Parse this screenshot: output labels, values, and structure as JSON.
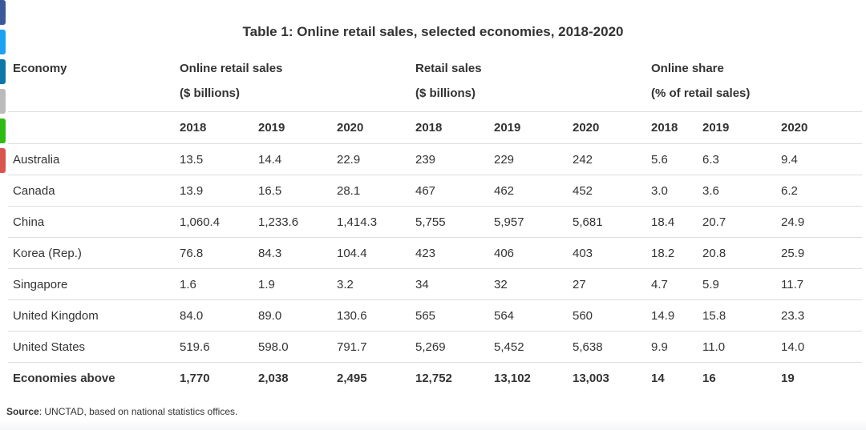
{
  "share_buttons": [
    {
      "icon": "facebook-icon",
      "color": "#3b5998"
    },
    {
      "icon": "twitter-icon",
      "color": "#1da1f2"
    },
    {
      "icon": "linkedin-icon",
      "color": "#0e76a8"
    },
    {
      "icon": "email-icon",
      "color": "#bbbbbb"
    },
    {
      "icon": "wechat-icon",
      "color": "#2dbb14"
    },
    {
      "icon": "share-icon",
      "color": "#d9534f"
    }
  ],
  "title": "Table 1: Online retail sales, selected economies, 2018-2020",
  "headers": {
    "economy": "Economy",
    "groups": [
      {
        "name": "Online retail sales",
        "unit": "($ billions)"
      },
      {
        "name": "Retail sales",
        "unit": "($ billions)"
      },
      {
        "name": "Online share",
        "unit": "(% of retail sales)"
      }
    ],
    "years": [
      "2018",
      "2019",
      "2020",
      "2018",
      "2019",
      "2020",
      "2018",
      "2019",
      "2020"
    ]
  },
  "rows": [
    {
      "economy": "Australia",
      "values": [
        "13.5",
        "14.4",
        "22.9",
        "239",
        "229",
        "242",
        "5.6",
        "6.3",
        "9.4"
      ]
    },
    {
      "economy": "Canada",
      "values": [
        "13.9",
        "16.5",
        "28.1",
        "467",
        "462",
        "452",
        "3.0",
        "3.6",
        "6.2"
      ]
    },
    {
      "economy": "China",
      "values": [
        "1,060.4",
        "1,233.6",
        "1,414.3",
        "5,755",
        "5,957",
        "5,681",
        "18.4",
        "20.7",
        "24.9"
      ]
    },
    {
      "economy": "Korea (Rep.)",
      "values": [
        "76.8",
        "84.3",
        "104.4",
        "423",
        "406",
        "403",
        "18.2",
        "20.8",
        "25.9"
      ]
    },
    {
      "economy": "Singapore",
      "values": [
        "1.6",
        "1.9",
        "3.2",
        "34",
        "32",
        "27",
        "4.7",
        "5.9",
        "11.7"
      ]
    },
    {
      "economy": "United Kingdom",
      "values": [
        "84.0",
        "89.0",
        "130.6",
        "565",
        "564",
        "560",
        "14.9",
        "15.8",
        "23.3"
      ]
    },
    {
      "economy": "United States",
      "values": [
        "519.6",
        "598.0",
        "791.7",
        "5,269",
        "5,452",
        "5,638",
        "9.9",
        "11.0",
        "14.0"
      ]
    }
  ],
  "total": {
    "economy": "Economies above",
    "values": [
      "1,770",
      "2,038",
      "2,495",
      "12,752",
      "13,102",
      "13,003",
      "14",
      "16",
      "19"
    ]
  },
  "source": {
    "label": "Source",
    "text": ": UNCTAD, based on national statistics offices."
  }
}
